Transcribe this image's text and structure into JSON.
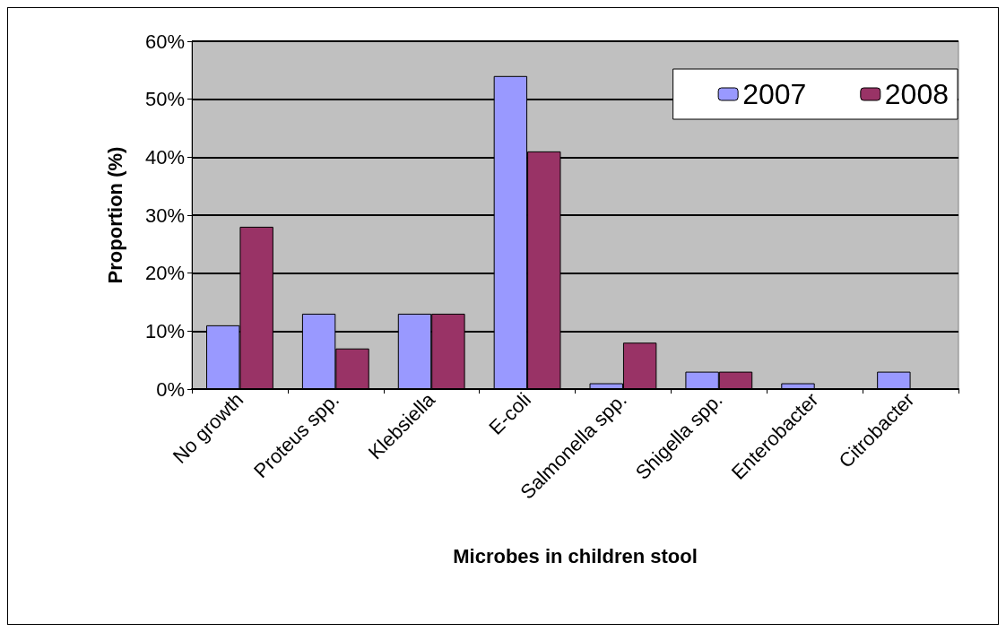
{
  "chart_data": {
    "type": "bar",
    "xlabel": "Microbes in children stool",
    "ylabel": "Proportion (%)",
    "categories": [
      "No growth",
      "Proteus spp.",
      "Klebsiella",
      "E-coli",
      "Salmonella spp.",
      "Shigella spp.",
      "Enterobacter",
      "Citrobacter"
    ],
    "series": [
      {
        "name": "2007",
        "color": "#9999ff",
        "values": [
          11,
          13,
          13,
          54,
          1,
          3,
          1,
          3
        ]
      },
      {
        "name": "2008",
        "color": "#993366",
        "values": [
          28,
          7,
          13,
          41,
          8,
          3,
          null,
          null
        ]
      }
    ],
    "ylim": [
      0,
      60
    ],
    "yticks": [
      {
        "value": 0,
        "label": "0%"
      },
      {
        "value": 10,
        "label": "10%"
      },
      {
        "value": 20,
        "label": "20%"
      },
      {
        "value": 30,
        "label": "30%"
      },
      {
        "value": 40,
        "label": "40%"
      },
      {
        "value": 50,
        "label": "50%"
      },
      {
        "value": 60,
        "label": "60%"
      }
    ],
    "grid": "y",
    "legend": "top right"
  }
}
